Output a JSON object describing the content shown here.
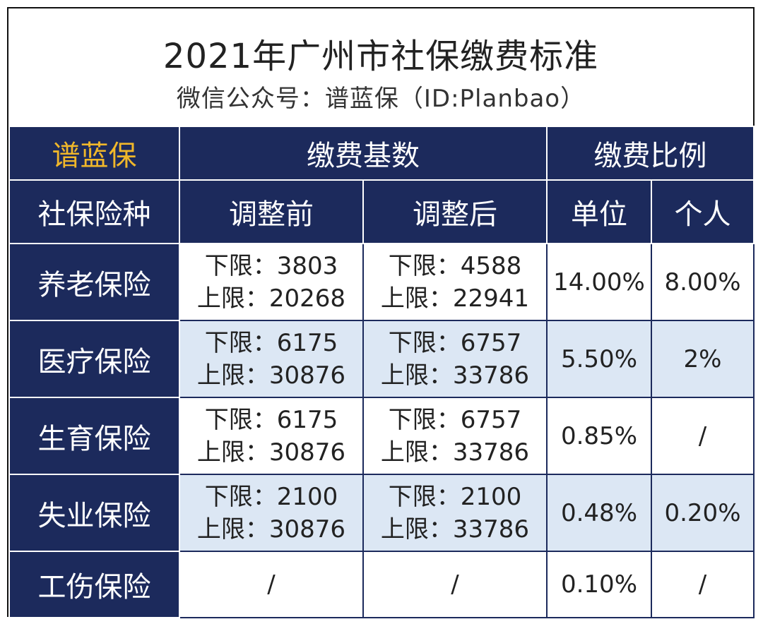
{
  "header": {
    "title": "2021年广州市社保缴费标准",
    "subtitle": "微信公众号：谱蓝保（ID:Planbao）"
  },
  "table": {
    "brand_label": "谱蓝保",
    "group_base": "缴费基数",
    "group_ratio": "缴费比例",
    "col_type": "社保险种",
    "col_before": "调整前",
    "col_after": "调整后",
    "col_employer": "单位",
    "col_personal": "个人",
    "rows": [
      {
        "name": "养老保险",
        "before": {
          "lower": "下限：3803",
          "upper": "上限：20268"
        },
        "after": {
          "lower": "下限：4588",
          "upper": "上限：22941"
        },
        "employer": "14.00%",
        "personal": "8.00%"
      },
      {
        "name": "医疗保险",
        "before": {
          "lower": "下限：6175",
          "upper": "上限：30876"
        },
        "after": {
          "lower": "下限：6757",
          "upper": "上限：33786"
        },
        "employer": "5.50%",
        "personal": "2%"
      },
      {
        "name": "生育保险",
        "before": {
          "lower": "下限：6175",
          "upper": "上限：30876"
        },
        "after": {
          "lower": "下限：6757",
          "upper": "上限：33786"
        },
        "employer": "0.85%",
        "personal": "/"
      },
      {
        "name": "失业保险",
        "before": {
          "lower": "下限：2100",
          "upper": "上限：30876"
        },
        "after": {
          "lower": "下限：2100",
          "upper": "上限：33786"
        },
        "employer": "0.48%",
        "personal": "0.20%"
      },
      {
        "name": "工伤保险",
        "before": {
          "single": "/"
        },
        "after": {
          "single": "/"
        },
        "employer": "0.10%",
        "personal": "/"
      }
    ]
  },
  "colors": {
    "header_bg": "#1c2a5c",
    "brand_text": "#f0b72a",
    "alt_row_bg": "#dce7f4"
  }
}
